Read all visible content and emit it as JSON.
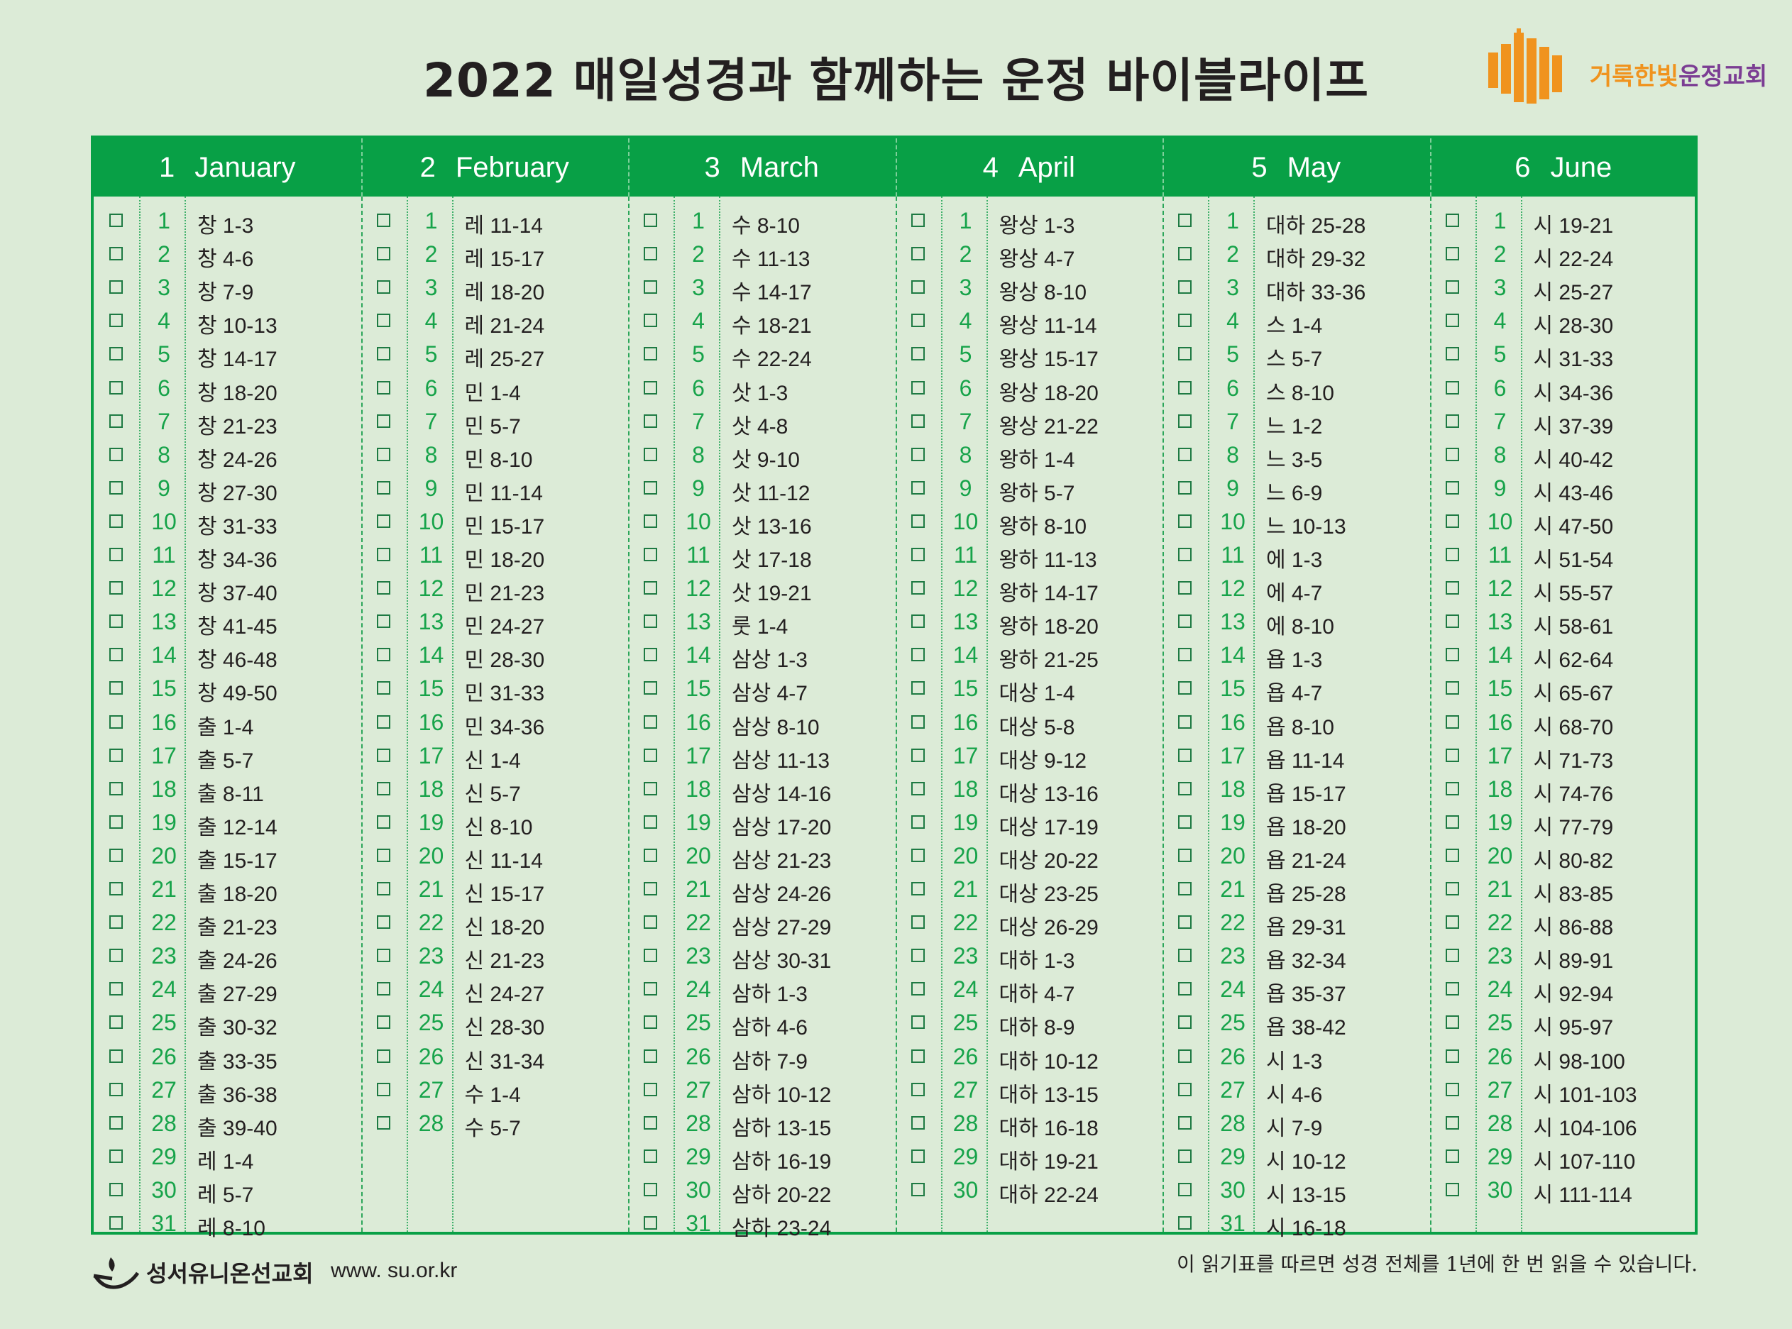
{
  "title": "2022 매일성경과 함께하는 운정 바이블라이프",
  "church": {
    "name_part1": "거룩한빛",
    "name_part2": "운정교회",
    "logo_icon": "church-building-icon"
  },
  "colors": {
    "green": "#08a046",
    "day_green": "#17a34a",
    "background": "#dcebd7",
    "orange": "#f0931e",
    "purple": "#7b3d93"
  },
  "months": [
    {
      "num": "1",
      "name": "January",
      "days": [
        [
          "1",
          "창 1-3"
        ],
        [
          "2",
          "창 4-6"
        ],
        [
          "3",
          "창 7-9"
        ],
        [
          "4",
          "창 10-13"
        ],
        [
          "5",
          "창 14-17"
        ],
        [
          "6",
          "창 18-20"
        ],
        [
          "7",
          "창 21-23"
        ],
        [
          "8",
          "창 24-26"
        ],
        [
          "9",
          "창 27-30"
        ],
        [
          "10",
          "창 31-33"
        ],
        [
          "11",
          "창 34-36"
        ],
        [
          "12",
          "창 37-40"
        ],
        [
          "13",
          "창 41-45"
        ],
        [
          "14",
          "창 46-48"
        ],
        [
          "15",
          "창 49-50"
        ],
        [
          "16",
          "출 1-4"
        ],
        [
          "17",
          "출 5-7"
        ],
        [
          "18",
          "출 8-11"
        ],
        [
          "19",
          "출 12-14"
        ],
        [
          "20",
          "출 15-17"
        ],
        [
          "21",
          "출 18-20"
        ],
        [
          "22",
          "출 21-23"
        ],
        [
          "23",
          "출 24-26"
        ],
        [
          "24",
          "출 27-29"
        ],
        [
          "25",
          "출 30-32"
        ],
        [
          "26",
          "출 33-35"
        ],
        [
          "27",
          "출 36-38"
        ],
        [
          "28",
          "출 39-40"
        ],
        [
          "29",
          "레 1-4"
        ],
        [
          "30",
          "레 5-7"
        ],
        [
          "31",
          "레 8-10"
        ]
      ]
    },
    {
      "num": "2",
      "name": "February",
      "days": [
        [
          "1",
          "레 11-14"
        ],
        [
          "2",
          "레 15-17"
        ],
        [
          "3",
          "레 18-20"
        ],
        [
          "4",
          "레 21-24"
        ],
        [
          "5",
          "레 25-27"
        ],
        [
          "6",
          "민 1-4"
        ],
        [
          "7",
          "민 5-7"
        ],
        [
          "8",
          "민 8-10"
        ],
        [
          "9",
          "민 11-14"
        ],
        [
          "10",
          "민 15-17"
        ],
        [
          "11",
          "민 18-20"
        ],
        [
          "12",
          "민 21-23"
        ],
        [
          "13",
          "민 24-27"
        ],
        [
          "14",
          "민 28-30"
        ],
        [
          "15",
          "민 31-33"
        ],
        [
          "16",
          "민 34-36"
        ],
        [
          "17",
          "신 1-4"
        ],
        [
          "18",
          "신 5-7"
        ],
        [
          "19",
          "신 8-10"
        ],
        [
          "20",
          "신 11-14"
        ],
        [
          "21",
          "신 15-17"
        ],
        [
          "22",
          "신 18-20"
        ],
        [
          "23",
          "신 21-23"
        ],
        [
          "24",
          "신 24-27"
        ],
        [
          "25",
          "신 28-30"
        ],
        [
          "26",
          "신 31-34"
        ],
        [
          "27",
          "수 1-4"
        ],
        [
          "28",
          "수 5-7"
        ]
      ]
    },
    {
      "num": "3",
      "name": "March",
      "days": [
        [
          "1",
          "수 8-10"
        ],
        [
          "2",
          "수 11-13"
        ],
        [
          "3",
          "수 14-17"
        ],
        [
          "4",
          "수 18-21"
        ],
        [
          "5",
          "수 22-24"
        ],
        [
          "6",
          "삿 1-3"
        ],
        [
          "7",
          "삿 4-8"
        ],
        [
          "8",
          "삿 9-10"
        ],
        [
          "9",
          "삿 11-12"
        ],
        [
          "10",
          "삿 13-16"
        ],
        [
          "11",
          "삿 17-18"
        ],
        [
          "12",
          "삿 19-21"
        ],
        [
          "13",
          "룻 1-4"
        ],
        [
          "14",
          "삼상 1-3"
        ],
        [
          "15",
          "삼상 4-7"
        ],
        [
          "16",
          "삼상 8-10"
        ],
        [
          "17",
          "삼상 11-13"
        ],
        [
          "18",
          "삼상 14-16"
        ],
        [
          "19",
          "삼상 17-20"
        ],
        [
          "20",
          "삼상 21-23"
        ],
        [
          "21",
          "삼상 24-26"
        ],
        [
          "22",
          "삼상 27-29"
        ],
        [
          "23",
          "삼상 30-31"
        ],
        [
          "24",
          "삼하 1-3"
        ],
        [
          "25",
          "삼하 4-6"
        ],
        [
          "26",
          "삼하 7-9"
        ],
        [
          "27",
          "삼하 10-12"
        ],
        [
          "28",
          "삼하 13-15"
        ],
        [
          "29",
          "삼하 16-19"
        ],
        [
          "30",
          "삼하 20-22"
        ],
        [
          "31",
          "삼하 23-24"
        ]
      ]
    },
    {
      "num": "4",
      "name": "April",
      "days": [
        [
          "1",
          "왕상 1-3"
        ],
        [
          "2",
          "왕상 4-7"
        ],
        [
          "3",
          "왕상 8-10"
        ],
        [
          "4",
          "왕상 11-14"
        ],
        [
          "5",
          "왕상 15-17"
        ],
        [
          "6",
          "왕상 18-20"
        ],
        [
          "7",
          "왕상 21-22"
        ],
        [
          "8",
          "왕하 1-4"
        ],
        [
          "9",
          "왕하 5-7"
        ],
        [
          "10",
          "왕하 8-10"
        ],
        [
          "11",
          "왕하 11-13"
        ],
        [
          "12",
          "왕하 14-17"
        ],
        [
          "13",
          "왕하 18-20"
        ],
        [
          "14",
          "왕하 21-25"
        ],
        [
          "15",
          "대상 1-4"
        ],
        [
          "16",
          "대상 5-8"
        ],
        [
          "17",
          "대상 9-12"
        ],
        [
          "18",
          "대상 13-16"
        ],
        [
          "19",
          "대상 17-19"
        ],
        [
          "20",
          "대상 20-22"
        ],
        [
          "21",
          "대상 23-25"
        ],
        [
          "22",
          "대상 26-29"
        ],
        [
          "23",
          "대하 1-3"
        ],
        [
          "24",
          "대하 4-7"
        ],
        [
          "25",
          "대하 8-9"
        ],
        [
          "26",
          "대하 10-12"
        ],
        [
          "27",
          "대하 13-15"
        ],
        [
          "28",
          "대하 16-18"
        ],
        [
          "29",
          "대하 19-21"
        ],
        [
          "30",
          "대하 22-24"
        ]
      ]
    },
    {
      "num": "5",
      "name": "May",
      "days": [
        [
          "1",
          "대하 25-28"
        ],
        [
          "2",
          "대하 29-32"
        ],
        [
          "3",
          "대하 33-36"
        ],
        [
          "4",
          "스 1-4"
        ],
        [
          "5",
          "스 5-7"
        ],
        [
          "6",
          "스 8-10"
        ],
        [
          "7",
          "느 1-2"
        ],
        [
          "8",
          "느 3-5"
        ],
        [
          "9",
          "느 6-9"
        ],
        [
          "10",
          "느 10-13"
        ],
        [
          "11",
          "에 1-3"
        ],
        [
          "12",
          "에 4-7"
        ],
        [
          "13",
          "에 8-10"
        ],
        [
          "14",
          "욥 1-3"
        ],
        [
          "15",
          "욥 4-7"
        ],
        [
          "16",
          "욥 8-10"
        ],
        [
          "17",
          "욥 11-14"
        ],
        [
          "18",
          "욥 15-17"
        ],
        [
          "19",
          "욥 18-20"
        ],
        [
          "20",
          "욥 21-24"
        ],
        [
          "21",
          "욥 25-28"
        ],
        [
          "22",
          "욥 29-31"
        ],
        [
          "23",
          "욥 32-34"
        ],
        [
          "24",
          "욥 35-37"
        ],
        [
          "25",
          "욥 38-42"
        ],
        [
          "26",
          "시 1-3"
        ],
        [
          "27",
          "시 4-6"
        ],
        [
          "28",
          "시 7-9"
        ],
        [
          "29",
          "시 10-12"
        ],
        [
          "30",
          "시 13-15"
        ],
        [
          "31",
          "시 16-18"
        ]
      ]
    },
    {
      "num": "6",
      "name": "June",
      "days": [
        [
          "1",
          "시 19-21"
        ],
        [
          "2",
          "시 22-24"
        ],
        [
          "3",
          "시 25-27"
        ],
        [
          "4",
          "시 28-30"
        ],
        [
          "5",
          "시 31-33"
        ],
        [
          "6",
          "시 34-36"
        ],
        [
          "7",
          "시 37-39"
        ],
        [
          "8",
          "시 40-42"
        ],
        [
          "9",
          "시 43-46"
        ],
        [
          "10",
          "시 47-50"
        ],
        [
          "11",
          "시 51-54"
        ],
        [
          "12",
          "시 55-57"
        ],
        [
          "13",
          "시 58-61"
        ],
        [
          "14",
          "시 62-64"
        ],
        [
          "15",
          "시 65-67"
        ],
        [
          "16",
          "시 68-70"
        ],
        [
          "17",
          "시 71-73"
        ],
        [
          "18",
          "시 74-76"
        ],
        [
          "19",
          "시 77-79"
        ],
        [
          "20",
          "시 80-82"
        ],
        [
          "21",
          "시 83-85"
        ],
        [
          "22",
          "시 86-88"
        ],
        [
          "23",
          "시 89-91"
        ],
        [
          "24",
          "시 92-94"
        ],
        [
          "25",
          "시 95-97"
        ],
        [
          "26",
          "시 98-100"
        ],
        [
          "27",
          "시 101-103"
        ],
        [
          "28",
          "시 104-106"
        ],
        [
          "29",
          "시 107-110"
        ],
        [
          "30",
          "시 111-114"
        ]
      ]
    }
  ],
  "footer": {
    "publisher": "성서유니온선교회",
    "url": "www. su.or.kr",
    "note": "이 읽기표를 따르면 성경 전체를 1년에 한 번 읽을 수 있습니다.",
    "publisher_icon": "lamp-icon"
  }
}
